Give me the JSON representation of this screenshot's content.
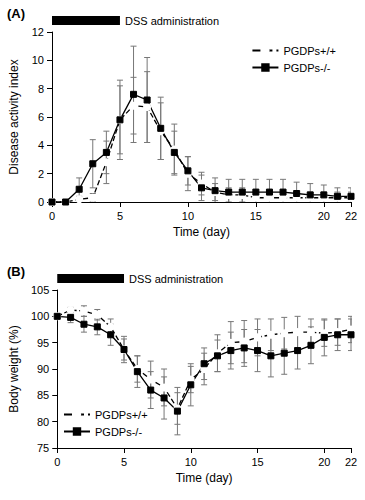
{
  "chart_data": [
    {
      "type": "line",
      "title": "(A)",
      "annotation": {
        "text": "DSS administration",
        "x": [
          0,
          5
        ]
      },
      "x_label": "Time (day)",
      "y_label": "Disease activity index",
      "x": [
        0,
        1,
        2,
        3,
        4,
        5,
        6,
        7,
        8,
        9,
        10,
        11,
        12,
        13,
        14,
        15,
        16,
        17,
        18,
        19,
        20,
        21,
        22
      ],
      "series": [
        {
          "name": "PGDPs+/+",
          "color": "#000000",
          "marker": "open circle",
          "line_style": "dashed",
          "values": [
            0,
            0,
            0.2,
            0.3,
            2.8,
            5.8,
            6.8,
            6.7,
            5.0,
            3.7,
            2.0,
            1.3,
            0.7,
            0.5,
            0.5,
            0.3,
            0.3,
            0.3,
            0.3,
            0.3,
            0.3,
            0.3,
            0.3
          ],
          "errors": [
            0,
            0,
            0.2,
            0.3,
            1.5,
            2.4,
            2.0,
            2.5,
            2.0,
            1.8,
            1.2,
            0.8,
            0.6,
            0.5,
            0.5,
            0.4,
            0.4,
            0.4,
            0.4,
            0.4,
            0.4,
            0.4,
            0.4
          ]
        },
        {
          "name": "PGDPs-/-",
          "color": "#000000",
          "marker": "filled square",
          "line_style": "solid",
          "values": [
            0,
            0,
            0.9,
            2.7,
            3.5,
            5.8,
            7.6,
            7.2,
            5.2,
            3.5,
            2.2,
            1.0,
            0.8,
            0.7,
            0.7,
            0.7,
            0.7,
            0.7,
            0.6,
            0.5,
            0.5,
            0.4,
            0.4
          ],
          "errors": [
            0,
            0,
            0.8,
            1.7,
            1.5,
            2.8,
            3.4,
            3.0,
            2.2,
            1.5,
            1.0,
            0.9,
            0.9,
            0.9,
            0.9,
            0.9,
            0.9,
            0.9,
            0.8,
            0.8,
            0.7,
            0.6,
            0.6
          ]
        }
      ],
      "xlim": [
        0,
        22
      ],
      "xticks": [
        0,
        5,
        10,
        15,
        20
      ],
      "ylim": [
        0,
        12
      ],
      "yticks": [
        0,
        2,
        4,
        6,
        8,
        10,
        12
      ],
      "grid": false,
      "legend": "upper right"
    },
    {
      "type": "line",
      "title": "(B)",
      "annotation": {
        "text": "DSS administration",
        "x": [
          0,
          5
        ]
      },
      "x_label": "Time (day)",
      "y_label": "Body weight (%)",
      "x": [
        0,
        1,
        2,
        3,
        4,
        5,
        6,
        7,
        8,
        9,
        10,
        11,
        12,
        13,
        14,
        15,
        16,
        17,
        18,
        19,
        20,
        21,
        22
      ],
      "series": [
        {
          "name": "PGDPs+/+",
          "color": "#000000",
          "marker": "open circle",
          "line_style": "dashed",
          "values": [
            100,
            101.2,
            101,
            100.3,
            98,
            93.7,
            90,
            88,
            86.5,
            82.5,
            88,
            90,
            93,
            95,
            95.2,
            96,
            96.5,
            96.8,
            97,
            97,
            96.8,
            97,
            97.5
          ],
          "errors": [
            0,
            0.5,
            1,
            1,
            1.5,
            2,
            2.5,
            3.5,
            3.5,
            3,
            2.5,
            3,
            3.5,
            4,
            4,
            3.5,
            3,
            3,
            3,
            2.5,
            2.5,
            2.5,
            2.5
          ]
        },
        {
          "name": "PGDPs-/-",
          "color": "#000000",
          "marker": "filled square",
          "line_style": "solid",
          "values": [
            100,
            99.8,
            98.5,
            98,
            96.5,
            93.7,
            89.5,
            86,
            84.5,
            82,
            87,
            91,
            92.5,
            93.5,
            94,
            93.5,
            92.5,
            93,
            93.5,
            94.5,
            96,
            96.5,
            96.5
          ],
          "errors": [
            0,
            1,
            1.5,
            1.5,
            2,
            2.5,
            3,
            3.5,
            4,
            4.5,
            4,
            3,
            3,
            3.5,
            3.5,
            4,
            4,
            4,
            3.5,
            3.5,
            3.5,
            3,
            3
          ]
        }
      ],
      "xlim": [
        0,
        22
      ],
      "xticks": [
        0,
        5,
        10,
        15,
        20
      ],
      "ylim": [
        75,
        105
      ],
      "yticks": [
        75,
        80,
        85,
        90,
        95,
        100,
        105
      ],
      "grid": false,
      "legend": "lower left"
    }
  ]
}
